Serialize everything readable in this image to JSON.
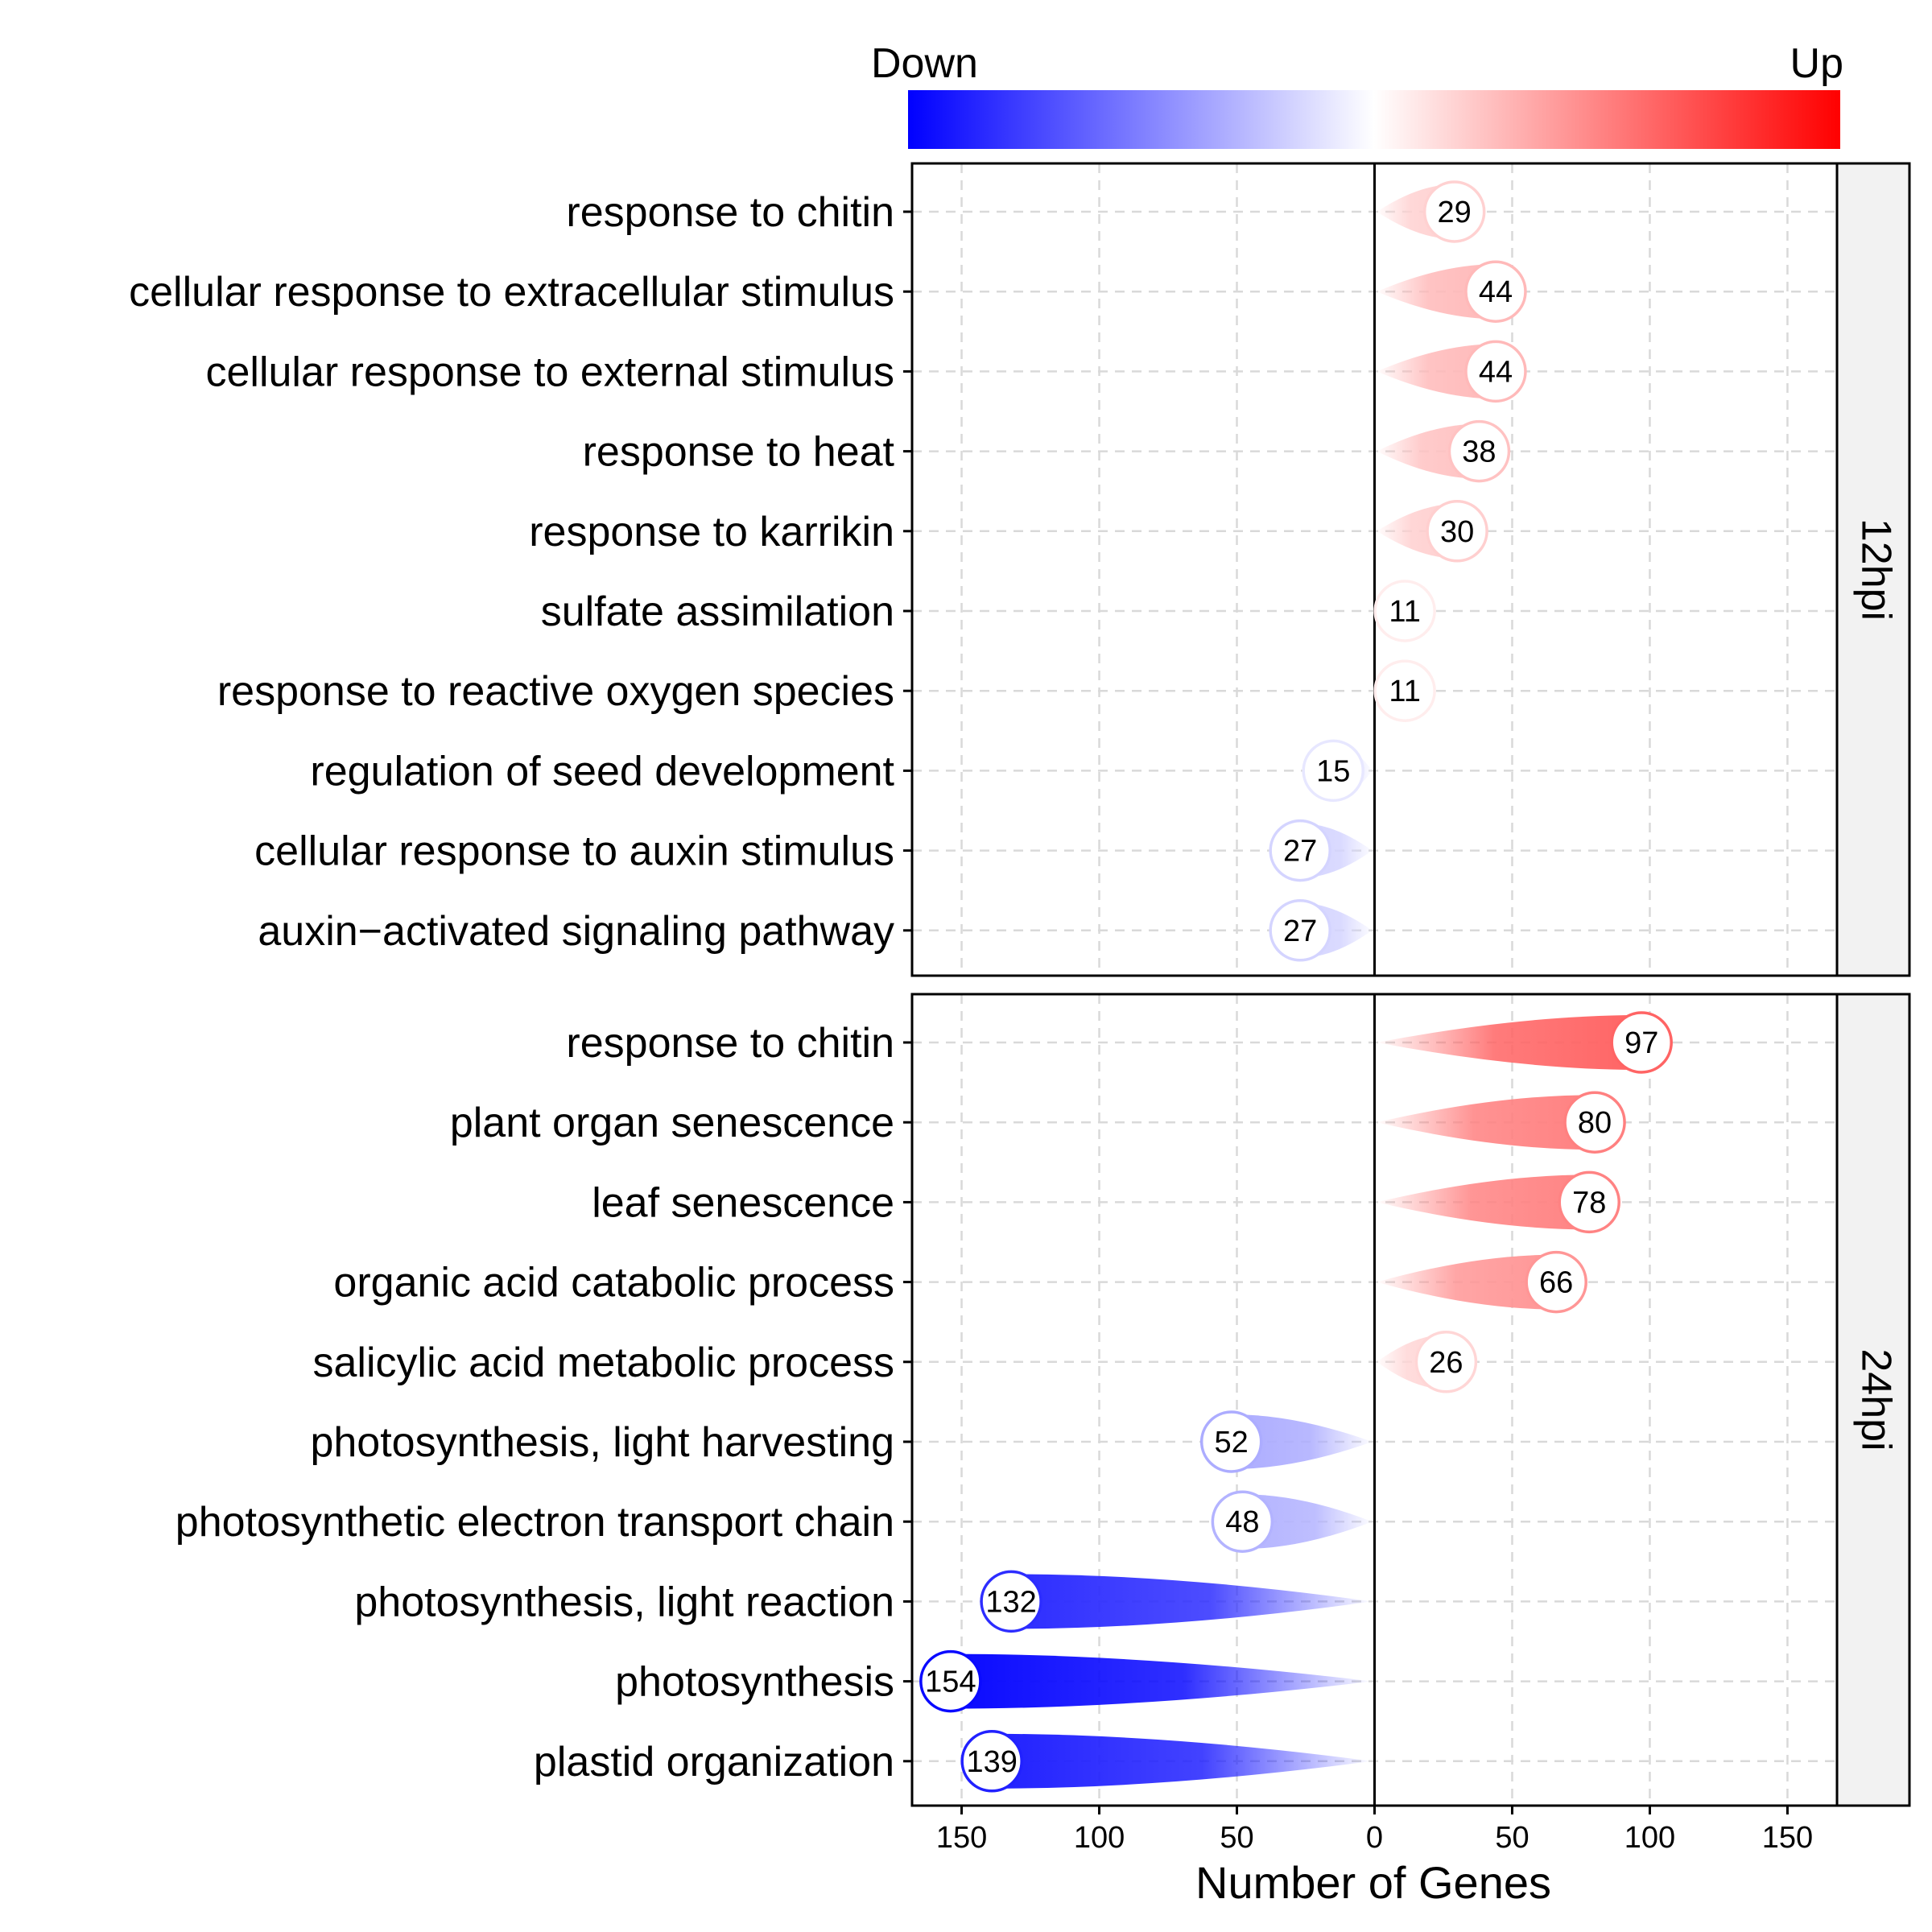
{
  "chart_data": {
    "type": "bar",
    "xlabel": "Number of Genes",
    "xlim": [
      -168,
      168
    ],
    "x_ticks": [
      {
        "value": -150,
        "label": "150"
      },
      {
        "value": -100,
        "label": "100"
      },
      {
        "value": -50,
        "label": "50"
      },
      {
        "value": 0,
        "label": "0"
      },
      {
        "value": 50,
        "label": "50"
      },
      {
        "value": 100,
        "label": "100"
      },
      {
        "value": 150,
        "label": "150"
      }
    ],
    "grid": true,
    "legend": {
      "type": "colorbar",
      "placement": "top",
      "low_label": "Down",
      "high_label": "Up",
      "low_color": "#0000ff",
      "mid_color": "#ffffff",
      "high_color": "#ff0000",
      "limit": 160
    },
    "panels": [
      {
        "strip": "12hpi",
        "categories": [
          "response to chitin",
          "cellular response to extracellular stimulus",
          "cellular response to external stimulus",
          "response to heat",
          "response to karrikin",
          "sulfate assimilation",
          "response to reactive oxygen species",
          "regulation of seed development",
          "cellular response to auxin stimulus",
          "auxin−activated signaling pathway"
        ],
        "values": [
          29,
          44,
          44,
          38,
          30,
          11,
          11,
          -15,
          -27,
          -27
        ],
        "labels": [
          "29",
          "44",
          "44",
          "38",
          "30",
          "11",
          "11",
          "15",
          "27",
          "27"
        ]
      },
      {
        "strip": "24hpi",
        "categories": [
          "response to chitin",
          "plant organ senescence",
          "leaf senescence",
          "organic acid catabolic process",
          "salicylic acid metabolic process",
          "photosynthesis, light harvesting",
          "photosynthetic electron transport chain",
          "photosynthesis, light reaction",
          "photosynthesis",
          "plastid organization"
        ],
        "values": [
          97,
          80,
          78,
          66,
          26,
          -52,
          -48,
          -132,
          -154,
          -139
        ],
        "labels": [
          "97",
          "80",
          "78",
          "66",
          "26",
          "52",
          "48",
          "132",
          "154",
          "139"
        ]
      }
    ]
  }
}
